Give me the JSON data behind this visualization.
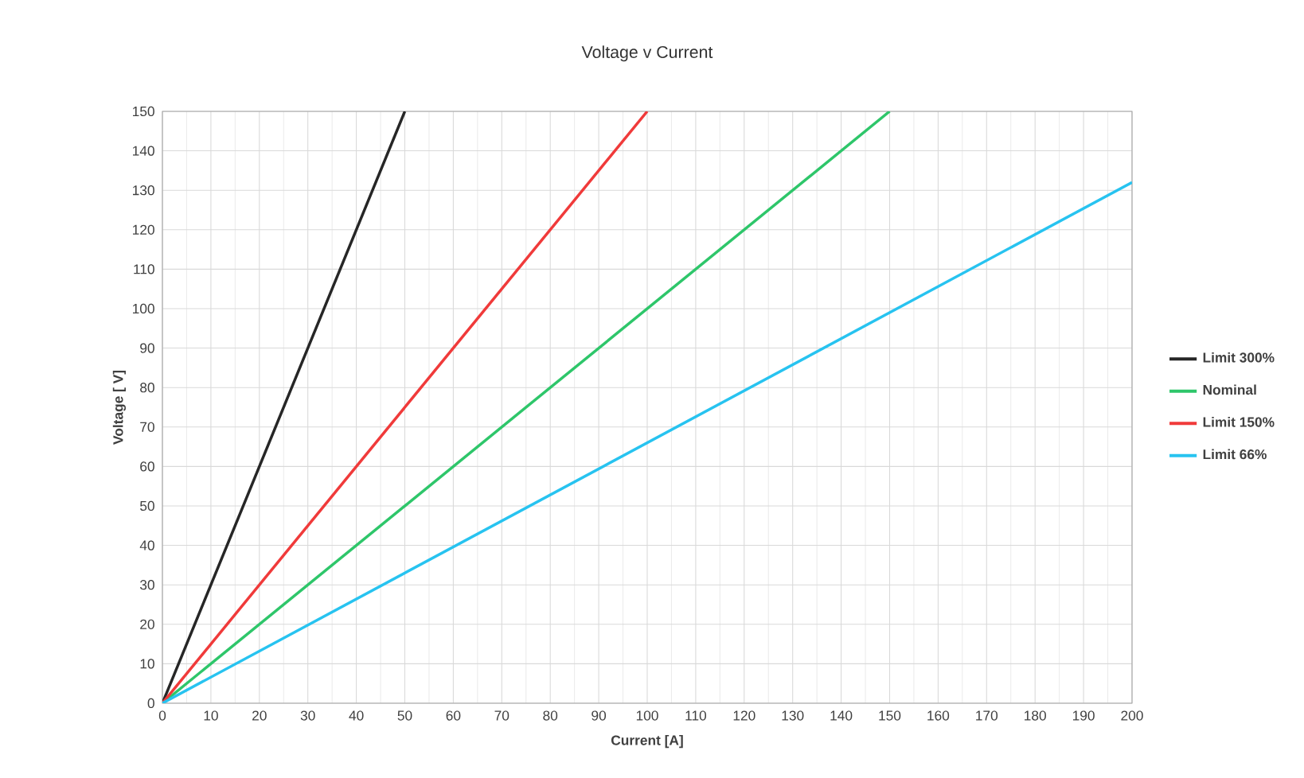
{
  "chart_data": {
    "type": "line",
    "title": "Voltage v Current",
    "xlabel": "Current [A]",
    "ylabel": "Voltage [ V]",
    "xlim": [
      0,
      200
    ],
    "ylim": [
      0,
      150
    ],
    "xticks": [
      0,
      10,
      20,
      30,
      40,
      50,
      60,
      70,
      80,
      90,
      100,
      110,
      120,
      130,
      140,
      150,
      160,
      170,
      180,
      190,
      200
    ],
    "yticks": [
      0,
      10,
      20,
      30,
      40,
      50,
      60,
      70,
      80,
      90,
      100,
      110,
      120,
      130,
      140,
      150
    ],
    "grid": true,
    "legend": "right",
    "marker": "none",
    "line_style": "solid",
    "series": [
      {
        "name": "Limit 300%",
        "color": "#262626",
        "x": [
          0,
          50
        ],
        "values": [
          0,
          150
        ]
      },
      {
        "name": "Nominal",
        "color": "#2ec66a",
        "x": [
          0,
          150
        ],
        "values": [
          0,
          150
        ]
      },
      {
        "name": "Limit 150%",
        "color": "#f03a3a",
        "x": [
          0,
          100
        ],
        "values": [
          0,
          150
        ]
      },
      {
        "name": "Limit 66%",
        "color": "#27c3f0",
        "x": [
          0,
          200
        ],
        "values": [
          0,
          132
        ]
      }
    ]
  }
}
